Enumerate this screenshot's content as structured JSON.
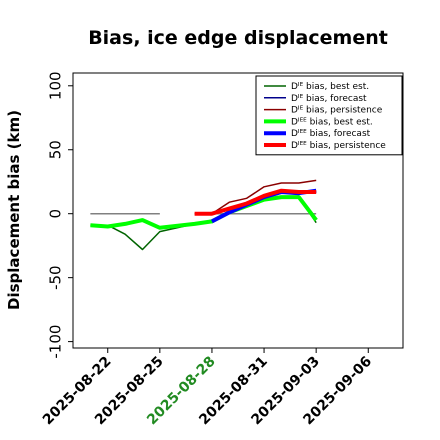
{
  "chart_data": {
    "type": "line",
    "title": "Bias, ice edge displacement",
    "xlabel": "",
    "ylabel": "Displacement bias (km)",
    "ylim": [
      -105,
      110
    ],
    "xlim": [
      "2025-08-20",
      "2025-09-08"
    ],
    "yticks": [
      -100,
      -50,
      0,
      50,
      100
    ],
    "xticks": [
      "2025-08-22",
      "2025-08-25",
      "2025-08-28",
      "2025-08-31",
      "2025-09-03",
      "2025-09-06"
    ],
    "highlighted_xtick": "2025-08-28",
    "highlight_color": "#228b22",
    "legend_position": "top-right",
    "zero_line_color": "#808080",
    "series": [
      {
        "name": "Dᴵᴱ bias, best est.",
        "color": "#006400",
        "width": 1.5,
        "x": [
          "2025-08-21",
          "2025-08-22",
          "2025-08-23",
          "2025-08-24",
          "2025-08-25",
          "2025-08-27",
          "2025-08-28",
          "2025-08-29",
          "2025-08-30",
          "2025-08-31",
          "2025-09-01",
          "2025-09-02",
          "2025-09-03"
        ],
        "y": [
          -9,
          -9,
          -16,
          -28,
          -14,
          -8,
          -5,
          2,
          7,
          12,
          13,
          13,
          -7
        ]
      },
      {
        "name": "Dᴵᴱ bias, forecast",
        "color": "#00008b",
        "width": 1.5,
        "x": [
          "2025-08-28",
          "2025-08-29",
          "2025-08-30",
          "2025-08-31",
          "2025-09-01",
          "2025-09-02",
          "2025-09-03"
        ],
        "y": [
          -7,
          0,
          6,
          12,
          16,
          16,
          17
        ]
      },
      {
        "name": "Dᴵᴱ bias, persistence",
        "color": "#8b0000",
        "width": 1.5,
        "x": [
          "2025-08-27",
          "2025-08-28",
          "2025-08-29",
          "2025-08-30",
          "2025-08-31",
          "2025-09-01",
          "2025-09-02",
          "2025-09-03"
        ],
        "y": [
          0,
          0,
          9,
          12,
          21,
          24,
          24,
          26
        ]
      },
      {
        "name": "Dᴵᴱᴱ bias, best est.",
        "color": "#00ff00",
        "width": 4,
        "x": [
          "2025-08-21",
          "2025-08-22",
          "2025-08-23",
          "2025-08-24",
          "2025-08-25",
          "2025-08-27",
          "2025-08-28",
          "2025-08-29",
          "2025-08-30",
          "2025-08-31",
          "2025-09-01",
          "2025-09-02",
          "2025-09-03"
        ],
        "y": [
          -9,
          -10,
          -8,
          -5,
          -11,
          -8,
          -6,
          1,
          6,
          11,
          13,
          13,
          -5
        ]
      },
      {
        "name": "Dᴵᴱᴱ bias, forecast",
        "color": "#0000ff",
        "width": 4,
        "x": [
          "2025-08-28",
          "2025-08-29",
          "2025-08-30",
          "2025-08-31",
          "2025-09-01",
          "2025-09-02",
          "2025-09-03"
        ],
        "y": [
          -6,
          1,
          7,
          13,
          17,
          16,
          18
        ]
      },
      {
        "name": "Dᴵᴱᴱ bias, persistence",
        "color": "#ff0000",
        "width": 4,
        "x": [
          "2025-08-27",
          "2025-08-28",
          "2025-08-29",
          "2025-08-30",
          "2025-08-31",
          "2025-09-01",
          "2025-09-02",
          "2025-09-03"
        ],
        "y": [
          0,
          0,
          4,
          8,
          14,
          18,
          17,
          17
        ]
      }
    ],
    "reference_lines": [
      {
        "x": [
          "2025-08-21",
          "2025-08-25"
        ],
        "y": [
          0,
          0
        ]
      },
      {
        "x": [
          "2025-08-27",
          "2025-09-03"
        ],
        "y": [
          0,
          0
        ]
      }
    ]
  }
}
